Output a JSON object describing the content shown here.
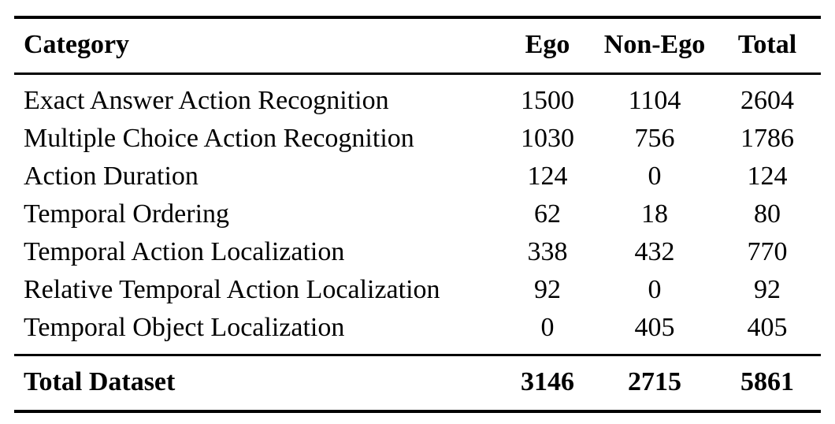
{
  "page": {
    "background": "#ffffff",
    "text_color": "#000000",
    "rule_color": "#000000"
  },
  "table": {
    "columns": {
      "category": "Category",
      "ego": "Ego",
      "non_ego": "Non-Ego",
      "total": "Total"
    },
    "rows": [
      {
        "category": "Exact Answer Action Recognition",
        "ego": "1500",
        "non_ego": "1104",
        "total": "2604"
      },
      {
        "category": "Multiple Choice Action Recognition",
        "ego": "1030",
        "non_ego": "756",
        "total": "1786"
      },
      {
        "category": "Action Duration",
        "ego": "124",
        "non_ego": "0",
        "total": "124"
      },
      {
        "category": "Temporal Ordering",
        "ego": "62",
        "non_ego": "18",
        "total": "80"
      },
      {
        "category": "Temporal Action Localization",
        "ego": "338",
        "non_ego": "432",
        "total": "770"
      },
      {
        "category": "Relative Temporal Action Localization",
        "ego": "92",
        "non_ego": "0",
        "total": "92"
      },
      {
        "category": "Temporal Object Localization",
        "ego": "0",
        "non_ego": "405",
        "total": "405"
      }
    ],
    "footer": {
      "category": "Total Dataset",
      "ego": "3146",
      "non_ego": "2715",
      "total": "5861"
    }
  }
}
